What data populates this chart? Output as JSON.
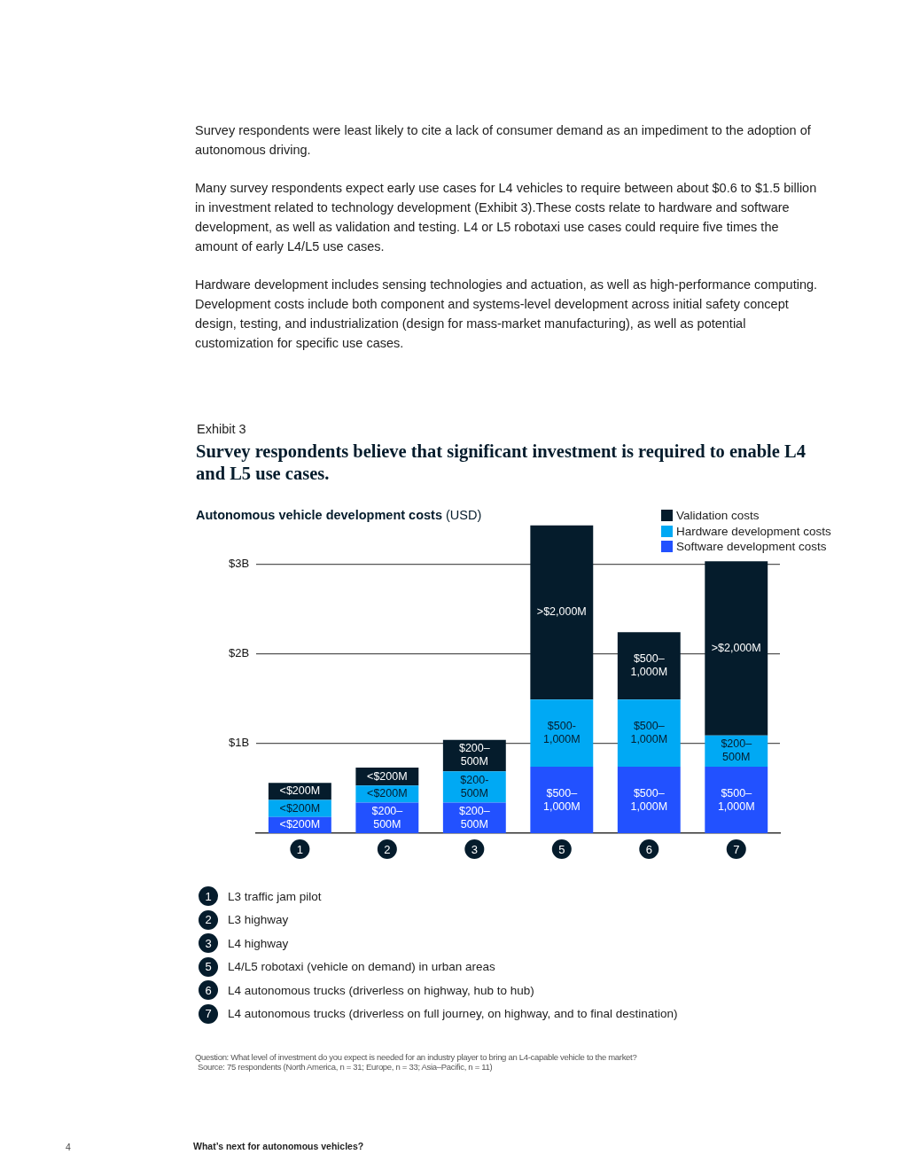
{
  "chart_data": {
    "type": "bar",
    "stacked": true,
    "title": "Survey respondents believe that significant investment is required to enable L4 and L5 use cases.",
    "subtitle": "Exhibit 3",
    "ylabel": "Autonomous vehicle development costs (USD)",
    "categories": [
      "1",
      "2",
      "3",
      "5",
      "6",
      "7"
    ],
    "series": [
      {
        "name": "Software development costs",
        "color": "#2251ff",
        "values": [
          0.18,
          0.34,
          0.34,
          0.74,
          0.74,
          0.74
        ],
        "value_labels": [
          "<$200M",
          "$200–500M",
          "$200–500M",
          "$500–1,000M",
          "$500–1,000M",
          "$500–1,000M"
        ]
      },
      {
        "name": "Hardware development costs",
        "color": "#00a9f4",
        "values": [
          0.19,
          0.19,
          0.35,
          0.75,
          0.75,
          0.35
        ],
        "value_labels": [
          "<$200M",
          "<$200M",
          "$200-500M",
          "$500-1,000M",
          "$500–1,000M",
          "$200–500M"
        ]
      },
      {
        "name": "Validation costs",
        "color": "#051c2c",
        "values": [
          0.19,
          0.2,
          0.35,
          1.94,
          0.75,
          1.94
        ],
        "value_labels": [
          "<$200M",
          "<$200M",
          "$200–500M",
          ">$2,000M",
          "$500–1,000M",
          ">$2,000M"
        ]
      }
    ],
    "ylim": [
      0,
      3.45
    ],
    "yticks": [
      {
        "value": 1,
        "label": "$1B"
      },
      {
        "value": 2,
        "label": "$2B"
      },
      {
        "value": 3,
        "label": "$3B"
      }
    ],
    "grid": "y",
    "legend": "top right",
    "annotations": [
      "Survey respondents were least likely to cite a lack of consumer demand as an impediment to the adoption of autonomous driving.",
      "Many survey respondents expect early use cases for L4 vehicles to require between about $0.6 to $1.5 billion in investment related to technology development (Exhibit 3).These costs relate to hardware and software development, as well as validation and testing. L4 or L5 robotaxi use cases could require five times the amount of early L4/L5 use cases.",
      "Hardware development includes sensing technologies and actuation, as well as high-performance computing. Development costs include both component and systems-level development across initial safety concept design, testing, and industrialization (design for mass-market manufacturing), as well as potential customization for specific use cases.",
      "L3 traffic jam pilot",
      "L3 highway",
      "L4 highway",
      "L4/L5 robotaxi (vehicle on demand) in urban areas",
      "L4 autonomous trucks (driverless on highway, hub to hub)",
      "L4 autonomous trucks (driverless on full journey, on highway, and to final destination)",
      "Question: What level of investment do you expect is needed for an industry player to bring an L4-capable vehicle to the market?",
      "Source: 75 respondents (North America, n = 31; Europe, n = 33; Asia–Pacific, n = 11)",
      "What’s next for autonomous vehicles?",
      "4"
    ]
  }
}
